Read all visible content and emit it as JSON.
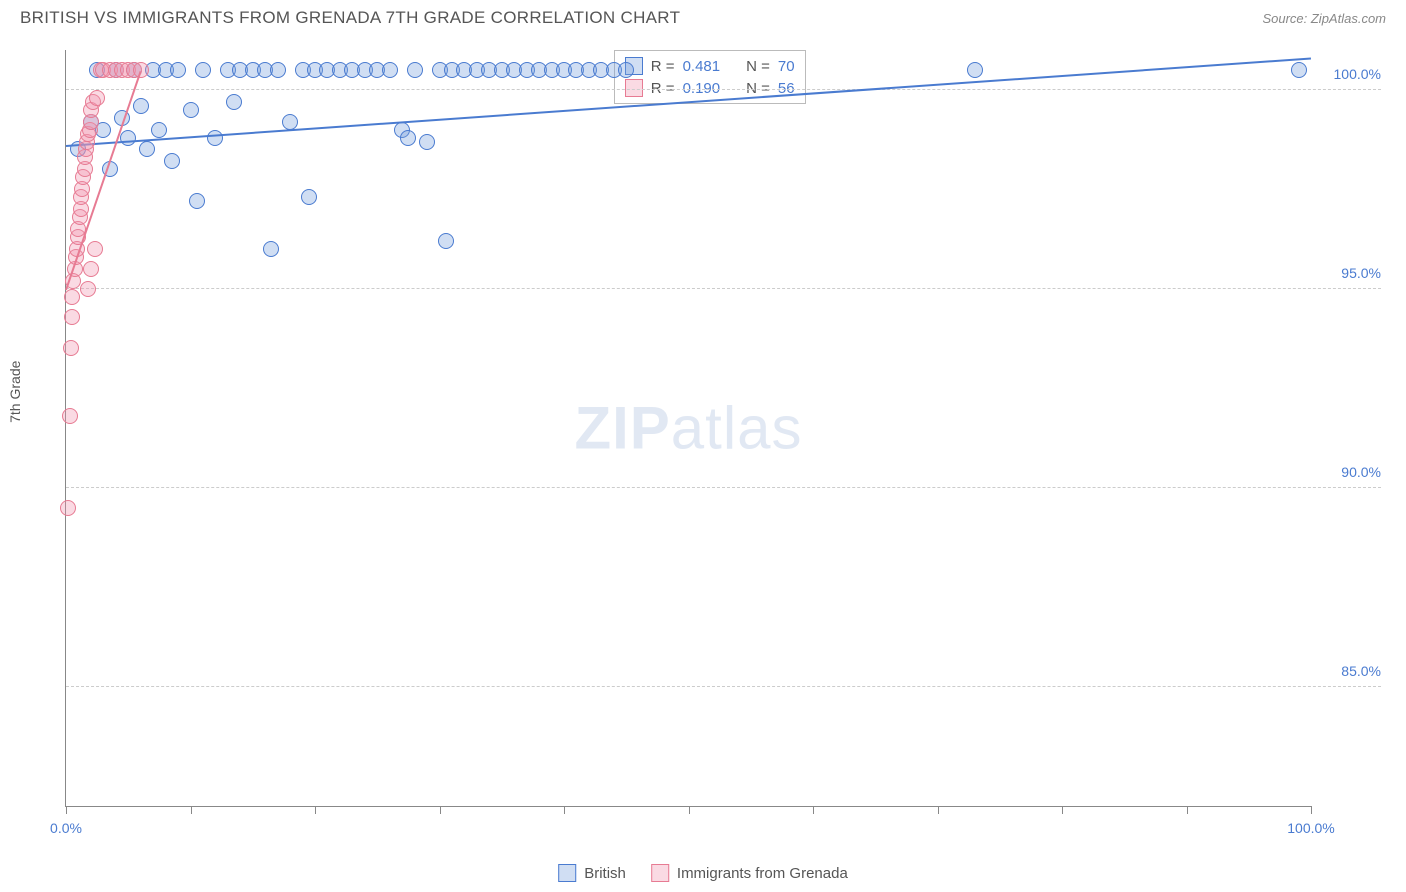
{
  "title": "BRITISH VS IMMIGRANTS FROM GRENADA 7TH GRADE CORRELATION CHART",
  "source": "Source: ZipAtlas.com",
  "y_axis_label": "7th Grade",
  "watermark_bold": "ZIP",
  "watermark_light": "atlas",
  "chart": {
    "type": "scatter",
    "xlim": [
      0,
      100
    ],
    "ylim": [
      82,
      101
    ],
    "y_ticks": [
      85,
      90,
      95,
      100
    ],
    "y_tick_labels": [
      "85.0%",
      "90.0%",
      "95.0%",
      "100.0%"
    ],
    "x_ticks": [
      0,
      10,
      20,
      30,
      40,
      50,
      60,
      70,
      80,
      90,
      100
    ],
    "x_tick_labels_shown": {
      "0": "0.0%",
      "100": "100.0%"
    },
    "background_color": "#ffffff",
    "grid_color": "#cccccc",
    "axis_color": "#888888",
    "tick_label_color": "#4a7bd0",
    "marker_radius": 8,
    "series": [
      {
        "name": "British",
        "legend_label": "British",
        "stroke": "#4a7bd0",
        "fill": "rgba(120,160,220,0.35)",
        "R": "0.481",
        "N": "70",
        "trend": {
          "x1": 0,
          "y1": 98.6,
          "x2": 100,
          "y2": 100.8
        },
        "points": [
          [
            1,
            98.5
          ],
          [
            2,
            99.2
          ],
          [
            2.5,
            100.5
          ],
          [
            3,
            99.0
          ],
          [
            3.5,
            98.0
          ],
          [
            4,
            100.5
          ],
          [
            4.5,
            99.3
          ],
          [
            5,
            98.8
          ],
          [
            5.5,
            100.5
          ],
          [
            6,
            99.6
          ],
          [
            6.5,
            98.5
          ],
          [
            7,
            100.5
          ],
          [
            7.5,
            99.0
          ],
          [
            8,
            100.5
          ],
          [
            8.5,
            98.2
          ],
          [
            9,
            100.5
          ],
          [
            10,
            99.5
          ],
          [
            10.5,
            97.2
          ],
          [
            11,
            100.5
          ],
          [
            12,
            98.8
          ],
          [
            13,
            100.5
          ],
          [
            13.5,
            99.7
          ],
          [
            14,
            100.5
          ],
          [
            15,
            100.5
          ],
          [
            16,
            100.5
          ],
          [
            16.5,
            96.0
          ],
          [
            17,
            100.5
          ],
          [
            18,
            99.2
          ],
          [
            19,
            100.5
          ],
          [
            19.5,
            97.3
          ],
          [
            20,
            100.5
          ],
          [
            21,
            100.5
          ],
          [
            22,
            100.5
          ],
          [
            23,
            100.5
          ],
          [
            24,
            100.5
          ],
          [
            25,
            100.5
          ],
          [
            26,
            100.5
          ],
          [
            27,
            99.0
          ],
          [
            28,
            100.5
          ],
          [
            29,
            98.7
          ],
          [
            30,
            100.5
          ],
          [
            30.5,
            96.2
          ],
          [
            31,
            100.5
          ],
          [
            32,
            100.5
          ],
          [
            33,
            100.5
          ],
          [
            34,
            100.5
          ],
          [
            35,
            100.5
          ],
          [
            36,
            100.5
          ],
          [
            37,
            100.5
          ],
          [
            38,
            100.5
          ],
          [
            39,
            100.5
          ],
          [
            40,
            100.5
          ],
          [
            41,
            100.5
          ],
          [
            42,
            100.5
          ],
          [
            43,
            100.5
          ],
          [
            44,
            100.5
          ],
          [
            45,
            100.5
          ],
          [
            27.5,
            98.8
          ],
          [
            73,
            100.5
          ],
          [
            99,
            100.5
          ]
        ]
      },
      {
        "name": "Immigrants from Grenada",
        "legend_label": "Immigrants from Grenada",
        "stroke": "#e77b93",
        "fill": "rgba(240,150,175,0.35)",
        "R": "0.190",
        "N": "56",
        "trend": {
          "x1": 0,
          "y1": 95.0,
          "x2": 6,
          "y2": 100.5
        },
        "points": [
          [
            0.2,
            89.5
          ],
          [
            0.3,
            91.8
          ],
          [
            0.5,
            94.3
          ],
          [
            0.5,
            94.8
          ],
          [
            0.6,
            95.2
          ],
          [
            0.7,
            95.5
          ],
          [
            0.8,
            95.8
          ],
          [
            0.9,
            96.0
          ],
          [
            1.0,
            96.3
          ],
          [
            1.0,
            96.5
          ],
          [
            1.1,
            96.8
          ],
          [
            1.2,
            97.0
          ],
          [
            1.2,
            97.3
          ],
          [
            1.3,
            97.5
          ],
          [
            1.4,
            97.8
          ],
          [
            1.5,
            98.0
          ],
          [
            1.5,
            98.3
          ],
          [
            1.6,
            98.5
          ],
          [
            1.7,
            98.7
          ],
          [
            1.8,
            98.9
          ],
          [
            1.9,
            99.0
          ],
          [
            2.0,
            99.2
          ],
          [
            2.0,
            99.5
          ],
          [
            2.2,
            99.7
          ],
          [
            2.5,
            99.8
          ],
          [
            2.8,
            100.5
          ],
          [
            3.0,
            100.5
          ],
          [
            3.5,
            100.5
          ],
          [
            4.0,
            100.5
          ],
          [
            4.5,
            100.5
          ],
          [
            5.0,
            100.5
          ],
          [
            5.5,
            100.5
          ],
          [
            6.0,
            100.5
          ],
          [
            2.3,
            96.0
          ],
          [
            2.0,
            95.5
          ],
          [
            1.8,
            95.0
          ],
          [
            0.4,
            93.5
          ]
        ]
      }
    ]
  },
  "stats_box": {
    "rows": [
      {
        "swatch_fill": "rgba(120,160,220,0.35)",
        "swatch_stroke": "#4a7bd0",
        "r_label": "R =",
        "r_val": "0.481",
        "n_label": "N =",
        "n_val": "70"
      },
      {
        "swatch_fill": "rgba(240,150,175,0.35)",
        "swatch_stroke": "#e77b93",
        "r_label": "R =",
        "r_val": "0.190",
        "n_label": "N =",
        "n_val": "56"
      }
    ]
  },
  "bottom_legend": [
    {
      "swatch_fill": "rgba(120,160,220,0.35)",
      "swatch_stroke": "#4a7bd0",
      "label": "British"
    },
    {
      "swatch_fill": "rgba(240,150,175,0.35)",
      "swatch_stroke": "#e77b93",
      "label": "Immigrants from Grenada"
    }
  ]
}
